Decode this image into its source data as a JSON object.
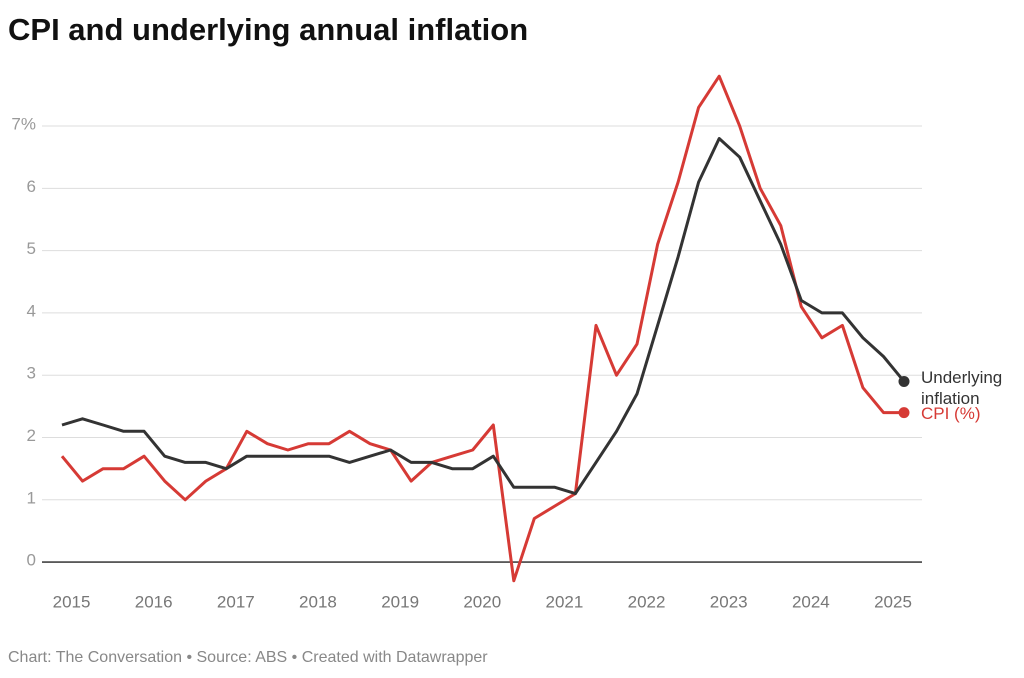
{
  "chart_data": {
    "type": "line",
    "title": "CPI and underlying annual inflation",
    "source": "Chart: The Conversation • Source: ABS • Created with Datawrapper",
    "categories": [
      null,
      "2015",
      null,
      null,
      null,
      "2016",
      null,
      null,
      null,
      "2017",
      null,
      null,
      null,
      "2018",
      null,
      null,
      null,
      "2019",
      null,
      null,
      null,
      "2020",
      null,
      null,
      null,
      "2021",
      null,
      null,
      null,
      "2022",
      null,
      null,
      null,
      "2023",
      null,
      null,
      null,
      "2024",
      null,
      null,
      null,
      "2025"
    ],
    "series": [
      {
        "name": "Underlying inflation",
        "color": "#333333",
        "values": [
          2.2,
          2.3,
          2.2,
          2.1,
          2.1,
          1.7,
          1.6,
          1.6,
          1.5,
          1.7,
          1.7,
          1.7,
          1.7,
          1.7,
          1.6,
          1.7,
          1.8,
          1.6,
          1.6,
          1.5,
          1.5,
          1.7,
          1.2,
          1.2,
          1.2,
          1.1,
          1.6,
          2.1,
          2.7,
          3.8,
          4.9,
          6.1,
          6.8,
          6.5,
          5.8,
          5.1,
          4.2,
          4.0,
          4.0,
          3.6,
          3.3,
          2.9
        ]
      },
      {
        "name": "CPI (%)",
        "color": "#d63a35",
        "values": [
          1.7,
          1.3,
          1.5,
          1.5,
          1.7,
          1.3,
          1.0,
          1.3,
          1.5,
          2.1,
          1.9,
          1.8,
          1.9,
          1.9,
          2.1,
          1.9,
          1.8,
          1.3,
          1.6,
          1.7,
          1.8,
          2.2,
          -0.3,
          0.7,
          0.9,
          1.1,
          3.8,
          3.0,
          3.5,
          5.1,
          6.1,
          7.3,
          7.8,
          7.0,
          6.0,
          5.4,
          4.1,
          3.6,
          3.8,
          2.8,
          2.4,
          2.4
        ]
      }
    ],
    "ylim": [
      -0.4,
      7.9
    ],
    "yticks": [
      0,
      1,
      2,
      3,
      4,
      5,
      6,
      {
        "value": 7,
        "label": "7%"
      }
    ],
    "grid": true
  }
}
